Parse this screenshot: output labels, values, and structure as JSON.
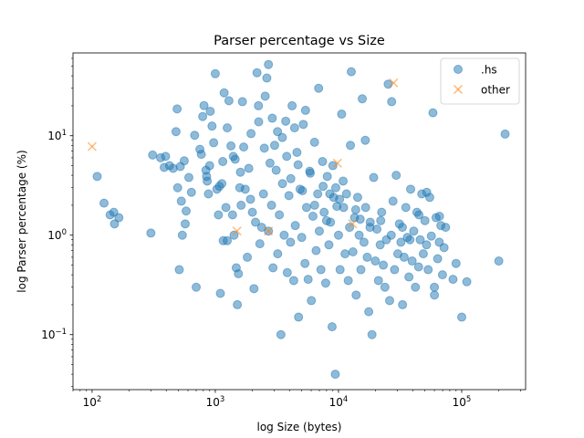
{
  "chart_data": {
    "type": "scatter",
    "title": "Parser percentage vs Size",
    "xlabel": "log Size (bytes)",
    "ylabel": "log Parser percentage (%)",
    "xscale": "log",
    "yscale": "log",
    "xlim": [
      70,
      330000
    ],
    "ylim": [
      0.028,
      68
    ],
    "xticks": [
      {
        "value": 100,
        "base": "10",
        "exp": "2"
      },
      {
        "value": 1000,
        "base": "10",
        "exp": "3"
      },
      {
        "value": 10000,
        "base": "10",
        "exp": "4"
      },
      {
        "value": 100000,
        "base": "10",
        "exp": "5"
      }
    ],
    "yticks": [
      {
        "value": 0.1,
        "base": "10",
        "exp": "−1"
      },
      {
        "value": 1,
        "base": "10",
        "exp": "0"
      },
      {
        "value": 10,
        "base": "10",
        "exp": "1"
      }
    ],
    "grid": false,
    "legend_position": "top-right",
    "series": [
      {
        "name": ".hs",
        "marker": "circle",
        "color": "#1f77b4",
        "points": [
          [
            110,
            3.9
          ],
          [
            125,
            2.1
          ],
          [
            140,
            1.6
          ],
          [
            150,
            1.7
          ],
          [
            152,
            1.3
          ],
          [
            165,
            1.5
          ],
          [
            300,
            1.05
          ],
          [
            310,
            6.4
          ],
          [
            360,
            6.0
          ],
          [
            385,
            4.8
          ],
          [
            395,
            6.2
          ],
          [
            425,
            5.0
          ],
          [
            455,
            4.7
          ],
          [
            480,
            11.0
          ],
          [
            490,
            18.6
          ],
          [
            495,
            3.0
          ],
          [
            510,
            0.45
          ],
          [
            530,
            2.2
          ],
          [
            540,
            1.0
          ],
          [
            560,
            5.6
          ],
          [
            570,
            1.3
          ],
          [
            580,
            1.75
          ],
          [
            610,
            3.8
          ],
          [
            680,
            10.1
          ],
          [
            700,
            0.3
          ],
          [
            750,
            7.3
          ],
          [
            770,
            6.5
          ],
          [
            790,
            15.6
          ],
          [
            810,
            20.1
          ],
          [
            840,
            4.5
          ],
          [
            860,
            3.5
          ],
          [
            880,
            2.6
          ],
          [
            900,
            5.0
          ],
          [
            910,
            17.6
          ],
          [
            940,
            12.5
          ],
          [
            970,
            8.5
          ],
          [
            1000,
            42.0
          ],
          [
            1030,
            2.9
          ],
          [
            1060,
            1.6
          ],
          [
            1080,
            3.1
          ],
          [
            1100,
            0.26
          ],
          [
            1130,
            3.3
          ],
          [
            1160,
            0.88
          ],
          [
            1180,
            27.0
          ],
          [
            1220,
            1.9
          ],
          [
            1250,
            0.88
          ],
          [
            1290,
            22.5
          ],
          [
            1340,
            7.9
          ],
          [
            1380,
            1.6
          ],
          [
            1420,
            1.0
          ],
          [
            1450,
            5.8
          ],
          [
            1480,
            0.47
          ],
          [
            1510,
            0.2
          ],
          [
            1540,
            0.41
          ],
          [
            1580,
            3.0
          ],
          [
            1620,
            2.0
          ],
          [
            1660,
            22.0
          ],
          [
            1700,
            7.7
          ],
          [
            1750,
            2.9
          ],
          [
            1820,
            0.6
          ],
          [
            1870,
            4.7
          ],
          [
            1930,
            2.3
          ],
          [
            2000,
            1.7
          ],
          [
            2060,
            0.29
          ],
          [
            2120,
            1.35
          ],
          [
            2180,
            43.0
          ],
          [
            2240,
            20.0
          ],
          [
            2300,
            0.82
          ],
          [
            2380,
            1.2
          ],
          [
            2460,
            2.6
          ],
          [
            2540,
            25.0
          ],
          [
            2620,
            38.0
          ],
          [
            2700,
            1.1
          ],
          [
            2780,
            5.3
          ],
          [
            2860,
            2.0
          ],
          [
            2940,
            0.47
          ],
          [
            3030,
            8.0
          ],
          [
            3120,
            4.5
          ],
          [
            3210,
            0.65
          ],
          [
            3310,
            1.6
          ],
          [
            3410,
            0.1
          ],
          [
            3510,
            3.3
          ],
          [
            3620,
            1.0
          ],
          [
            3730,
            14.0
          ],
          [
            3840,
            0.42
          ],
          [
            3960,
            2.5
          ],
          [
            4080,
            0.85
          ],
          [
            4200,
            20.0
          ],
          [
            4330,
            0.35
          ],
          [
            4460,
            1.25
          ],
          [
            4600,
            6.8
          ],
          [
            4740,
            0.15
          ],
          [
            4880,
            2.9
          ],
          [
            5030,
            0.95
          ],
          [
            5180,
            13.0
          ],
          [
            5340,
            0.52
          ],
          [
            5500,
            1.9
          ],
          [
            5670,
            0.36
          ],
          [
            5840,
            4.4
          ],
          [
            6020,
            0.22
          ],
          [
            6200,
            1.55
          ],
          [
            6390,
            8.6
          ],
          [
            6580,
            0.7
          ],
          [
            6780,
            2.6
          ],
          [
            6990,
            1.1
          ],
          [
            7200,
            0.45
          ],
          [
            7420,
            5.5
          ],
          [
            7640,
            1.7
          ],
          [
            7870,
            0.33
          ],
          [
            8110,
            3.9
          ],
          [
            8360,
            0.8
          ],
          [
            8610,
            1.35
          ],
          [
            8870,
            0.12
          ],
          [
            9140,
            2.4
          ],
          [
            9420,
            0.04
          ],
          [
            9700,
            1.95
          ],
          [
            10000,
            1.0
          ],
          [
            10300,
            0.45
          ],
          [
            10600,
            16.5
          ],
          [
            10900,
            3.5
          ],
          [
            11300,
            0.65
          ],
          [
            11600,
            2.6
          ],
          [
            12000,
            0.35
          ],
          [
            12300,
            1.2
          ],
          [
            12700,
            44.0
          ],
          [
            13100,
            0.68
          ],
          [
            13500,
            1.5
          ],
          [
            13900,
            0.25
          ],
          [
            14300,
            2.4
          ],
          [
            14700,
            1.0
          ],
          [
            15200,
            0.45
          ],
          [
            15600,
            23.5
          ],
          [
            16100,
            0.85
          ],
          [
            16600,
            1.9
          ],
          [
            17100,
            0.6
          ],
          [
            17600,
            0.17
          ],
          [
            18100,
            1.35
          ],
          [
            18700,
            0.1
          ],
          [
            19300,
            3.8
          ],
          [
            19900,
            0.55
          ],
          [
            20500,
            1.15
          ],
          [
            21100,
            0.35
          ],
          [
            21800,
            0.8
          ],
          [
            22400,
            1.7
          ],
          [
            23100,
            0.5
          ],
          [
            23800,
            0.3
          ],
          [
            24500,
            0.9
          ],
          [
            25300,
            33.0
          ],
          [
            26000,
            0.22
          ],
          [
            26800,
            1.0
          ],
          [
            27700,
            2.2
          ],
          [
            28500,
            0.45
          ],
          [
            29400,
            4.0
          ],
          [
            30300,
            0.65
          ],
          [
            31200,
            1.3
          ],
          [
            32100,
            0.85
          ],
          [
            33100,
            0.2
          ],
          [
            34100,
            0.6
          ],
          [
            35200,
            1.9
          ],
          [
            36200,
            0.95
          ],
          [
            37300,
            0.38
          ],
          [
            38500,
            2.9
          ],
          [
            39600,
            0.55
          ],
          [
            40800,
            1.1
          ],
          [
            42100,
            0.3
          ],
          [
            43300,
            1.7
          ],
          [
            44700,
            0.48
          ],
          [
            46000,
            0.9
          ],
          [
            47400,
            2.6
          ],
          [
            48800,
            0.65
          ],
          [
            50300,
            1.4
          ],
          [
            51800,
            0.8
          ],
          [
            53400,
            0.45
          ],
          [
            55000,
            2.4
          ],
          [
            56700,
            0.98
          ],
          [
            58400,
            17.0
          ],
          [
            60100,
            0.25
          ],
          [
            61900,
            1.5
          ],
          [
            63800,
            0.58
          ],
          [
            65700,
            0.85
          ],
          [
            67700,
            1.25
          ],
          [
            69800,
            0.4
          ],
          [
            71900,
            0.75
          ],
          [
            74000,
            1.2
          ],
          [
            85000,
            0.36
          ],
          [
            90000,
            0.52
          ],
          [
            100000,
            0.15
          ],
          [
            110000,
            0.34
          ],
          [
            200000,
            0.55
          ],
          [
            225000,
            10.4
          ],
          [
            520,
            4.9
          ],
          [
            640,
            2.7
          ],
          [
            850,
            3.9
          ],
          [
            1150,
            5.5
          ],
          [
            1250,
            12.0
          ],
          [
            1400,
            6.2
          ],
          [
            1600,
            4.3
          ],
          [
            1950,
            10.5
          ],
          [
            2250,
            13.8
          ],
          [
            2500,
            7.5
          ],
          [
            2700,
            52.0
          ],
          [
            2900,
            15.0
          ],
          [
            3200,
            11.0
          ],
          [
            3500,
            9.6
          ],
          [
            3800,
            6.2
          ],
          [
            4100,
            3.7
          ],
          [
            4400,
            12.0
          ],
          [
            4700,
            5.1
          ],
          [
            5100,
            2.8
          ],
          [
            5400,
            18.0
          ],
          [
            5900,
            4.2
          ],
          [
            6400,
            2.0
          ],
          [
            6900,
            30.0
          ],
          [
            7500,
            3.1
          ],
          [
            8000,
            1.4
          ],
          [
            8500,
            2.6
          ],
          [
            9000,
            5.0
          ],
          [
            9500,
            3.0
          ],
          [
            10200,
            2.3
          ],
          [
            11000,
            1.9
          ],
          [
            12500,
            8.0
          ],
          [
            13800,
            1.8
          ],
          [
            15000,
            1.45
          ],
          [
            16500,
            9.0
          ],
          [
            18000,
            1.2
          ],
          [
            22000,
            1.4
          ],
          [
            27000,
            22.0
          ],
          [
            33000,
            1.2
          ],
          [
            38000,
            0.9
          ],
          [
            45000,
            1.6
          ],
          [
            52000,
            2.7
          ],
          [
            60000,
            0.3
          ],
          [
            66000,
            1.55
          ]
        ]
      },
      {
        "name": "other",
        "marker": "x",
        "color": "#ff7f0e",
        "points": [
          [
            100,
            7.8
          ],
          [
            1500,
            1.1
          ],
          [
            2700,
            1.1
          ],
          [
            9800,
            5.3
          ],
          [
            13000,
            1.3
          ],
          [
            28000,
            34.0
          ]
        ]
      }
    ]
  }
}
